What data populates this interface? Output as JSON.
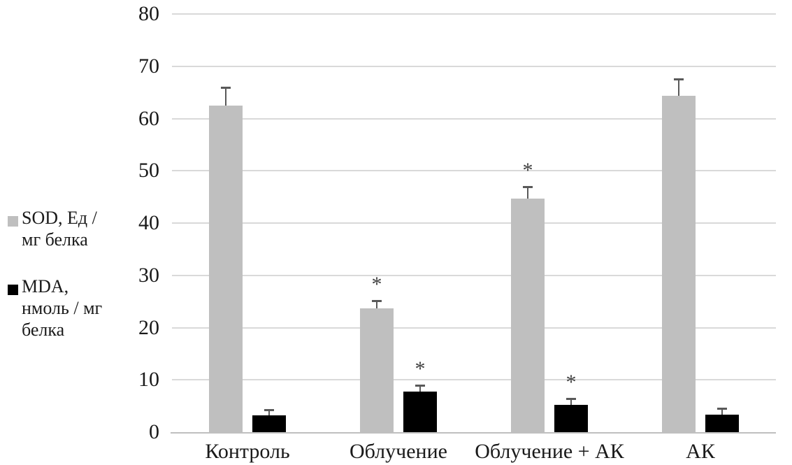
{
  "chart_data": {
    "type": "bar",
    "title": "",
    "xlabel": "",
    "ylabel": "",
    "categories": [
      "Контроль",
      "Облучение",
      "Облучение + АК",
      "АК"
    ],
    "series": [
      {
        "name": "SOD",
        "legend_lines": [
          "SOD, Ед /",
          "мг белка"
        ],
        "color": "#bfbfbf",
        "values": [
          62.5,
          23.7,
          44.7,
          64.3
        ],
        "errors": [
          3.4,
          1.5,
          2.3,
          3.3
        ],
        "significant": [
          false,
          true,
          true,
          false
        ]
      },
      {
        "name": "MDA",
        "legend_lines": [
          "MDA,",
          "нмоль / мг",
          "белка"
        ],
        "color": "#000000",
        "values": [
          3.2,
          7.7,
          5.2,
          3.4
        ],
        "errors": [
          1.1,
          1.2,
          1.2,
          1.2
        ],
        "significant": [
          false,
          true,
          true,
          false
        ]
      }
    ],
    "ylim": [
      0,
      80
    ],
    "yticks": [
      0,
      10,
      20,
      30,
      40,
      50,
      60,
      70,
      80
    ],
    "grid": "horizontal",
    "legend_position": "left",
    "significance_marker": "*",
    "colors": {
      "gridline": "#d9d9d9",
      "axis_line": "#bfbfbf",
      "error_bar": "#595959",
      "text": "#1a1a1a",
      "asterisk": "#404040",
      "background": "#ffffff"
    }
  }
}
